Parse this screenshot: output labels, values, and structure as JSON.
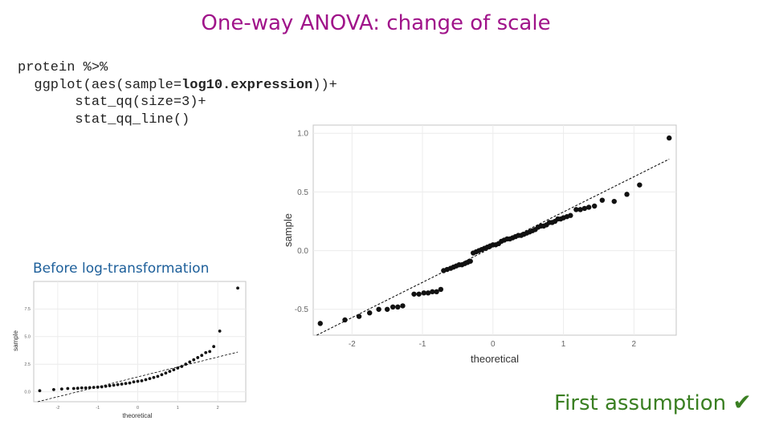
{
  "slide": {
    "title": "One-way ANOVA: change of scale",
    "code": {
      "line1": "protein %>%",
      "line2_prefix": "  ggplot(aes(sample=",
      "line2_bold": "log10.expression",
      "line2_suffix": "))+",
      "line3": "       stat_qq(size=3)+",
      "line4": "       stat_qq_line()"
    },
    "before_label": "Before log-transformation",
    "first_assumption": "First assumption",
    "check_glyph": "✔"
  },
  "colors": {
    "title": "#a0148a",
    "before": "#1d5f9a",
    "first": "#3a7f22",
    "points": "#111111"
  },
  "chart_data": [
    {
      "type": "scatter",
      "name": "qq-after-log",
      "xlabel": "theoretical",
      "ylabel": "sample",
      "xticks": [
        "-2",
        "-1",
        "0",
        "1",
        "2"
      ],
      "xtick_values": [
        -2,
        -1,
        0,
        1,
        2
      ],
      "yticks": [
        "-0.5",
        "0.0",
        "0.5",
        "1.0"
      ],
      "ytick_values": [
        -0.5,
        0,
        0.5,
        1.0
      ],
      "xlim": [
        -2.55,
        2.6
      ],
      "ylim": [
        -0.72,
        1.07
      ],
      "qq_line": {
        "x": [
          -2.5,
          2.5
        ],
        "y": [
          -0.72,
          0.78
        ]
      },
      "points": [
        [
          -2.45,
          -0.62
        ],
        [
          -2.1,
          -0.59
        ],
        [
          -1.9,
          -0.56
        ],
        [
          -1.75,
          -0.53
        ],
        [
          -1.62,
          -0.5
        ],
        [
          -1.5,
          -0.5
        ],
        [
          -1.42,
          -0.48
        ],
        [
          -1.35,
          -0.48
        ],
        [
          -1.28,
          -0.47
        ],
        [
          -1.12,
          -0.37
        ],
        [
          -1.05,
          -0.37
        ],
        [
          -0.98,
          -0.36
        ],
        [
          -0.92,
          -0.36
        ],
        [
          -0.86,
          -0.35
        ],
        [
          -0.8,
          -0.35
        ],
        [
          -0.74,
          -0.33
        ],
        [
          -0.7,
          -0.17
        ],
        [
          -0.65,
          -0.16
        ],
        [
          -0.6,
          -0.15
        ],
        [
          -0.56,
          -0.14
        ],
        [
          -0.52,
          -0.13
        ],
        [
          -0.48,
          -0.12
        ],
        [
          -0.44,
          -0.12
        ],
        [
          -0.4,
          -0.11
        ],
        [
          -0.36,
          -0.1
        ],
        [
          -0.32,
          -0.09
        ],
        [
          -0.28,
          -0.02
        ],
        [
          -0.24,
          -0.01
        ],
        [
          -0.2,
          0.0
        ],
        [
          -0.16,
          0.01
        ],
        [
          -0.12,
          0.02
        ],
        [
          -0.08,
          0.03
        ],
        [
          -0.04,
          0.04
        ],
        [
          0.0,
          0.05
        ],
        [
          0.04,
          0.05
        ],
        [
          0.08,
          0.06
        ],
        [
          0.12,
          0.08
        ],
        [
          0.16,
          0.09
        ],
        [
          0.2,
          0.1
        ],
        [
          0.24,
          0.1
        ],
        [
          0.28,
          0.11
        ],
        [
          0.32,
          0.12
        ],
        [
          0.36,
          0.13
        ],
        [
          0.4,
          0.13
        ],
        [
          0.44,
          0.14
        ],
        [
          0.48,
          0.15
        ],
        [
          0.52,
          0.16
        ],
        [
          0.56,
          0.17
        ],
        [
          0.6,
          0.18
        ],
        [
          0.64,
          0.2
        ],
        [
          0.68,
          0.21
        ],
        [
          0.72,
          0.21
        ],
        [
          0.76,
          0.22
        ],
        [
          0.8,
          0.24
        ],
        [
          0.84,
          0.24
        ],
        [
          0.88,
          0.25
        ],
        [
          0.92,
          0.27
        ],
        [
          0.96,
          0.27
        ],
        [
          1.0,
          0.28
        ],
        [
          1.05,
          0.29
        ],
        [
          1.1,
          0.3
        ],
        [
          1.18,
          0.35
        ],
        [
          1.24,
          0.35
        ],
        [
          1.3,
          0.36
        ],
        [
          1.36,
          0.37
        ],
        [
          1.44,
          0.38
        ],
        [
          1.55,
          0.43
        ],
        [
          1.72,
          0.42
        ],
        [
          1.9,
          0.48
        ],
        [
          2.08,
          0.56
        ],
        [
          2.5,
          0.96
        ]
      ]
    },
    {
      "type": "scatter",
      "name": "qq-before-log",
      "xlabel": "theoretical",
      "ylabel": "sample",
      "xticks": [
        "-2",
        "-1",
        "0",
        "1",
        "2"
      ],
      "xtick_values": [
        -2,
        -1,
        0,
        1,
        2
      ],
      "yticks": [
        "0.0",
        "2.5",
        "5.0",
        "7.5"
      ],
      "ytick_values": [
        0,
        2.5,
        5.0,
        7.5
      ],
      "xlim": [
        -2.6,
        2.7
      ],
      "ylim": [
        -0.9,
        10.0
      ],
      "qq_line": {
        "x": [
          -2.5,
          2.5
        ],
        "y": [
          -0.9,
          3.6
        ]
      },
      "points": [
        [
          -2.45,
          0.1
        ],
        [
          -2.1,
          0.2
        ],
        [
          -1.9,
          0.25
        ],
        [
          -1.75,
          0.3
        ],
        [
          -1.6,
          0.3
        ],
        [
          -1.5,
          0.32
        ],
        [
          -1.4,
          0.35
        ],
        [
          -1.3,
          0.35
        ],
        [
          -1.2,
          0.38
        ],
        [
          -1.1,
          0.4
        ],
        [
          -1.0,
          0.42
        ],
        [
          -0.9,
          0.45
        ],
        [
          -0.8,
          0.5
        ],
        [
          -0.7,
          0.55
        ],
        [
          -0.6,
          0.6
        ],
        [
          -0.5,
          0.65
        ],
        [
          -0.4,
          0.7
        ],
        [
          -0.3,
          0.75
        ],
        [
          -0.2,
          0.8
        ],
        [
          -0.1,
          0.9
        ],
        [
          0.0,
          0.95
        ],
        [
          0.1,
          1.0
        ],
        [
          0.2,
          1.1
        ],
        [
          0.3,
          1.2
        ],
        [
          0.4,
          1.3
        ],
        [
          0.5,
          1.4
        ],
        [
          0.6,
          1.55
        ],
        [
          0.7,
          1.7
        ],
        [
          0.8,
          1.85
        ],
        [
          0.9,
          2.0
        ],
        [
          1.0,
          2.15
        ],
        [
          1.1,
          2.3
        ],
        [
          1.2,
          2.5
        ],
        [
          1.3,
          2.7
        ],
        [
          1.4,
          2.9
        ],
        [
          1.5,
          3.1
        ],
        [
          1.6,
          3.3
        ],
        [
          1.7,
          3.55
        ],
        [
          1.8,
          3.65
        ],
        [
          1.9,
          4.1
        ],
        [
          2.05,
          5.5
        ],
        [
          2.5,
          9.4
        ]
      ]
    }
  ]
}
